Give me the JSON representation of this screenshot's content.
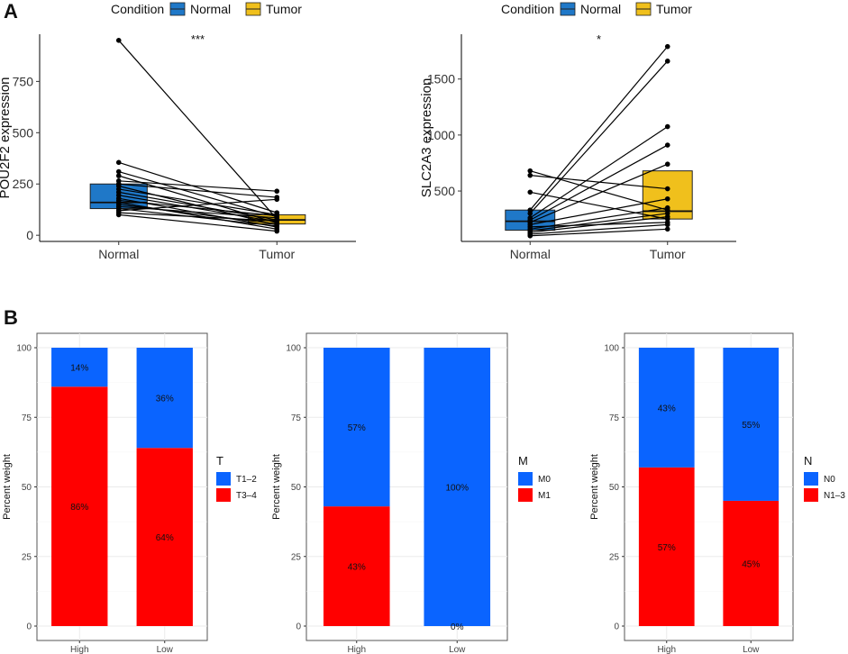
{
  "figure": {
    "panel_a_label": "A",
    "panel_b_label": "B"
  },
  "colors": {
    "normal": "#1f78c8",
    "tumor": "#f0c01c",
    "blue": "#0a64ff",
    "red": "#ff0000",
    "grid": "#ebebeb",
    "line": "#000000"
  },
  "chart_data": [
    {
      "type": "paired-box",
      "id": "pou2f2",
      "ylabel": "POU2F2 expression",
      "ylim": [
        -30,
        980
      ],
      "yticks": [
        0,
        250,
        500,
        750
      ],
      "categories": [
        "Normal",
        "Tumor"
      ],
      "legend": {
        "title": "Condition",
        "items": [
          "Normal",
          "Tumor"
        ]
      },
      "significance": "***",
      "box": {
        "Normal": {
          "q1": 130,
          "median": 160,
          "q3": 250
        },
        "Tumor": {
          "q1": 55,
          "median": 75,
          "q3": 100
        }
      },
      "pairs": [
        [
          950,
          80
        ],
        [
          355,
          110
        ],
        [
          310,
          90
        ],
        [
          290,
          60
        ],
        [
          265,
          215
        ],
        [
          250,
          185
        ],
        [
          240,
          50
        ],
        [
          225,
          100
        ],
        [
          210,
          75
        ],
        [
          195,
          65
        ],
        [
          180,
          40
        ],
        [
          170,
          95
        ],
        [
          160,
          30
        ],
        [
          150,
          55
        ],
        [
          140,
          85
        ],
        [
          130,
          45
        ],
        [
          120,
          175
        ],
        [
          110,
          70
        ],
        [
          100,
          20
        ]
      ]
    },
    {
      "type": "paired-box",
      "id": "slc2a3",
      "ylabel": "SLC2A3 expression",
      "ylim": [
        50,
        1900
      ],
      "yticks": [
        500,
        1000,
        1500
      ],
      "categories": [
        "Normal",
        "Tumor"
      ],
      "legend": {
        "title": "Condition",
        "items": [
          "Normal",
          "Tumor"
        ]
      },
      "significance": "*",
      "box": {
        "Normal": {
          "q1": 150,
          "median": 230,
          "q3": 330
        },
        "Tumor": {
          "q1": 250,
          "median": 320,
          "q3": 680
        }
      },
      "pairs": [
        [
          680,
          330
        ],
        [
          640,
          520
        ],
        [
          490,
          250
        ],
        [
          330,
          1790
        ],
        [
          300,
          1660
        ],
        [
          260,
          1075
        ],
        [
          240,
          910
        ],
        [
          220,
          740
        ],
        [
          200,
          430
        ],
        [
          180,
          220
        ],
        [
          160,
          350
        ],
        [
          145,
          300
        ],
        [
          130,
          270
        ],
        [
          115,
          200
        ],
        [
          100,
          160
        ]
      ]
    },
    {
      "type": "stacked-bar",
      "id": "t-stage",
      "ylabel": "Percent weight",
      "categories": [
        "High",
        "Low"
      ],
      "yticks": [
        0,
        25,
        50,
        75,
        100
      ],
      "legend_title": "T",
      "series": [
        {
          "name": "T1–2",
          "color": "#0a64ff",
          "values": [
            14,
            36
          ],
          "labels": [
            "14%",
            "36%"
          ]
        },
        {
          "name": "T3–4",
          "color": "#ff0000",
          "values": [
            86,
            64
          ],
          "labels": [
            "86%",
            "64%"
          ]
        }
      ]
    },
    {
      "type": "stacked-bar",
      "id": "m-stage",
      "ylabel": "Percent weight",
      "categories": [
        "High",
        "Low"
      ],
      "yticks": [
        0,
        25,
        50,
        75,
        100
      ],
      "legend_title": "M",
      "series": [
        {
          "name": "M0",
          "color": "#0a64ff",
          "values": [
            57,
            100
          ],
          "labels": [
            "57%",
            "100%"
          ]
        },
        {
          "name": "M1",
          "color": "#ff0000",
          "values": [
            43,
            0
          ],
          "labels": [
            "43%",
            "0%"
          ]
        }
      ]
    },
    {
      "type": "stacked-bar",
      "id": "n-stage",
      "ylabel": "Percent weight",
      "categories": [
        "High",
        "Low"
      ],
      "yticks": [
        0,
        25,
        50,
        75,
        100
      ],
      "legend_title": "N",
      "series": [
        {
          "name": "N0",
          "color": "#0a64ff",
          "values": [
            43,
            55
          ],
          "labels": [
            "43%",
            "55%"
          ]
        },
        {
          "name": "N1–3",
          "color": "#ff0000",
          "values": [
            57,
            45
          ],
          "labels": [
            "57%",
            "45%"
          ]
        }
      ]
    }
  ]
}
